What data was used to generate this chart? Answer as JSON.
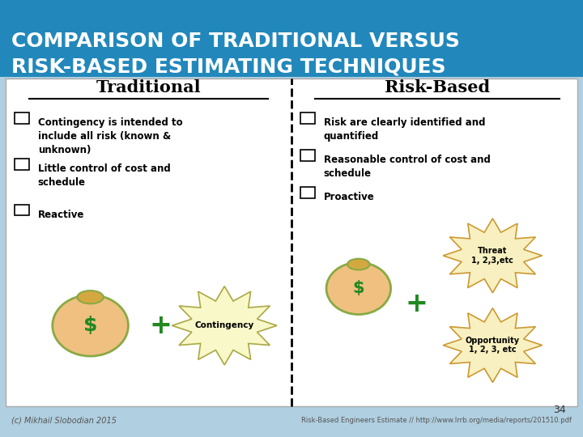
{
  "title_line1": "COMPARISON OF TRADITIONAL VERSUS",
  "title_line2": "RISK-BASED ESTIMATING TECHNIQUES",
  "title_bg_color": "#2288bb",
  "title_text_color": "#ffffff",
  "slide_bg_color": "#b0cfe0",
  "traditional_header": "Traditional",
  "riskbased_header": "Risk-Based",
  "traditional_bullets": [
    "Contingency is intended to\ninclude all risk (known &\nunknown)",
    "Little control of cost and\nschedule",
    "Reactive"
  ],
  "riskbased_bullets": [
    "Risk are clearly identified and\nquantified",
    "Reasonable control of cost and\nschedule",
    "Proactive"
  ],
  "threat_label": "Threat\n1, 2,3,etc",
  "opportunity_label": "Opportunity\n1, 2, 3, etc",
  "contingency_label": "Contingency",
  "footer_left": "(c) Mikhail Slobodian 2015",
  "footer_right": "Risk-Based Engineers Estimate // http://www.lrrb.org/media/reports/201510.pdf",
  "page_number": "34"
}
